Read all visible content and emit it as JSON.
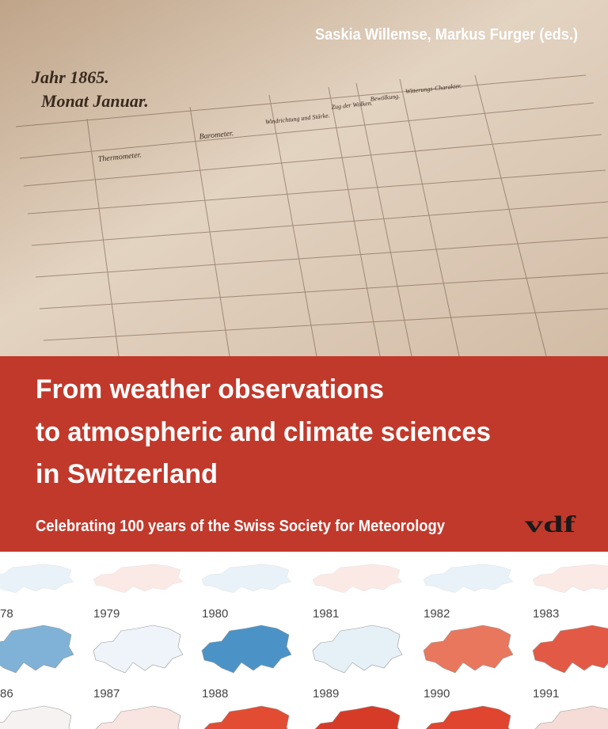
{
  "authors": "Saskia Willemse, Markus Furger (eds.)",
  "ledger": {
    "year": "Jahr 1865.",
    "month": "Monat Januar.",
    "headers": [
      "Thermometer.",
      "Barometer.",
      "Windrichtung und Stärke.",
      "Zug der Wolken.",
      "Bewölkung.",
      "Witterungs-Charakter."
    ]
  },
  "title": {
    "lines": [
      "From weather observations",
      "to atmospheric and climate sciences",
      "in Switzerland"
    ]
  },
  "subtitle": "Celebrating 100 years of the Swiss Society for Meteorology",
  "publisher": "vdf",
  "maps": {
    "rows": [
      [
        "78",
        "1979",
        "1980",
        "1981",
        "1982",
        "1983"
      ],
      [
        "86",
        "1987",
        "1988",
        "1989",
        "1990",
        "1991"
      ]
    ]
  }
}
